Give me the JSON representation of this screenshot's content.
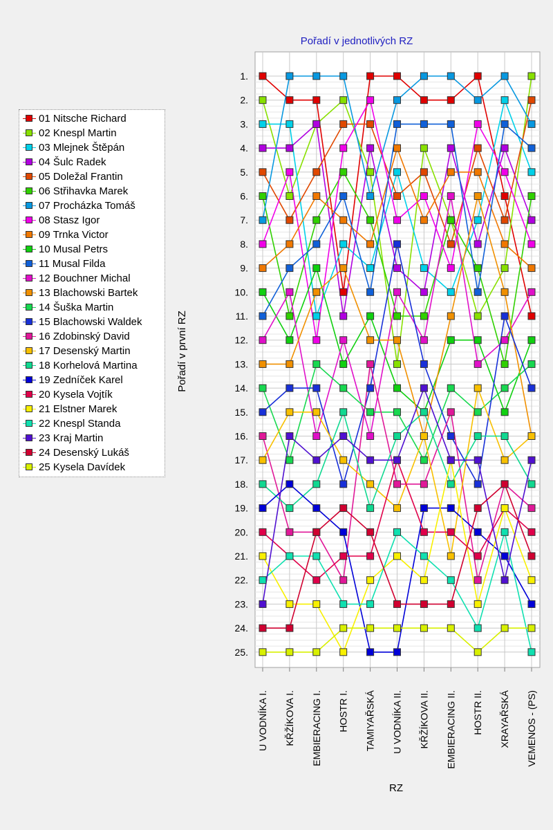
{
  "chart_data": {
    "type": "line",
    "title": "Pořadí v jednotlivých RZ",
    "xlabel": "RZ",
    "ylabel": "Pořadí v první RZ",
    "y_tick_labels": [
      "1.",
      "2.",
      "3.",
      "4.",
      "5.",
      "6.",
      "7.",
      "8.",
      "9.",
      "10.",
      "11.",
      "12.",
      "13.",
      "14.",
      "15.",
      "16.",
      "17.",
      "18.",
      "19.",
      "20.",
      "21.",
      "22.",
      "23.",
      "24.",
      "25."
    ],
    "ylim": [
      1,
      25
    ],
    "y_inverted": true,
    "grid": true,
    "legend_position": "left",
    "categories": [
      "U VODNÍKA I.",
      "KŘŽÍKOVA I.",
      "EMBIERACING I.",
      "HOSTR I.",
      "TAMIYAŘSKÁ",
      "U VODNÍKA II.",
      "KŘŽÍKOVA II.",
      "EMBIERACING II.",
      "HOSTR II.",
      "XRAYAŘSKÁ",
      "VEMENOS - (PS)"
    ],
    "series": [
      {
        "name": "01 Nitsche Richard",
        "color": "#e00000",
        "values": [
          1,
          2,
          2,
          10,
          1,
          1,
          2,
          2,
          1,
          6,
          11
        ]
      },
      {
        "name": "02 Knespl Martin",
        "color": "#88e000",
        "values": [
          2,
          6,
          3,
          2,
          5,
          13,
          4,
          7,
          11,
          9,
          1
        ]
      },
      {
        "name": "03 Mlejnek Štěpán",
        "color": "#00d0e8",
        "values": [
          3,
          3,
          11,
          8,
          9,
          5,
          9,
          10,
          7,
          2,
          5
        ]
      },
      {
        "name": "04 Šulc Radek",
        "color": "#b000e0",
        "values": [
          4,
          4,
          3,
          11,
          4,
          9,
          10,
          4,
          8,
          4,
          7
        ]
      },
      {
        "name": "05 Doležal Frantin",
        "color": "#e04800",
        "values": [
          5,
          7,
          5,
          3,
          3,
          6,
          5,
          8,
          4,
          7,
          2
        ]
      },
      {
        "name": "06 Střihavka Marek",
        "color": "#30d000",
        "values": [
          6,
          11,
          7,
          5,
          7,
          11,
          11,
          7,
          9,
          13,
          6
        ]
      },
      {
        "name": "07 Procházka Tomáš",
        "color": "#0898e0",
        "values": [
          7,
          1,
          1,
          1,
          6,
          2,
          1,
          1,
          2,
          1,
          3
        ]
      },
      {
        "name": "08 Stasz Igor",
        "color": "#f000e8",
        "values": [
          8,
          5,
          12,
          4,
          2,
          7,
          6,
          9,
          3,
          5,
          8
        ]
      },
      {
        "name": "09 Trnka Victor",
        "color": "#f07800",
        "values": [
          9,
          8,
          6,
          7,
          8,
          4,
          7,
          5,
          5,
          8,
          9
        ]
      },
      {
        "name": "10 Musal Petrs",
        "color": "#10d010",
        "values": [
          10,
          12,
          9,
          13,
          11,
          14,
          15,
          12,
          12,
          15,
          12
        ]
      },
      {
        "name": "11 Musal Filda",
        "color": "#1060d8",
        "values": [
          11,
          9,
          8,
          6,
          10,
          3,
          3,
          3,
          10,
          3,
          4
        ]
      },
      {
        "name": "12 Bouchner Michal",
        "color": "#e010c8",
        "values": [
          12,
          10,
          16,
          12,
          16,
          10,
          12,
          6,
          13,
          12,
          10
        ]
      },
      {
        "name": "13 Blachowski Bartek",
        "color": "#f09000",
        "values": [
          13,
          13,
          10,
          9,
          12,
          12,
          16,
          11,
          6,
          10,
          16
        ]
      },
      {
        "name": "14 Šuška Martin",
        "color": "#18d850",
        "values": [
          14,
          17,
          13,
          14,
          15,
          15,
          17,
          14,
          15,
          14,
          13
        ]
      },
      {
        "name": "15 Blachowski Waldek",
        "color": "#1830d8",
        "values": [
          15,
          14,
          14,
          18,
          14,
          8,
          13,
          16,
          18,
          11,
          14
        ]
      },
      {
        "name": "16 Zdobinský David",
        "color": "#e01898",
        "values": [
          16,
          20,
          20,
          22,
          13,
          18,
          18,
          15,
          22,
          18,
          19
        ]
      },
      {
        "name": "17 Desenský Martin",
        "color": "#f8c000",
        "values": [
          17,
          15,
          15,
          17,
          18,
          19,
          16,
          21,
          14,
          17,
          16
        ]
      },
      {
        "name": "18 Korhelová Martina",
        "color": "#10d890",
        "values": [
          18,
          19,
          18,
          15,
          19,
          16,
          15,
          18,
          16,
          16,
          18
        ]
      },
      {
        "name": "19 Zedníček Karel",
        "color": "#0000d8",
        "values": [
          19,
          18,
          19,
          20,
          25,
          25,
          19,
          19,
          20,
          21,
          23
        ]
      },
      {
        "name": "20 Kysela Vojtík",
        "color": "#e0004a",
        "values": [
          20,
          21,
          22,
          21,
          21,
          17,
          20,
          20,
          21,
          19,
          20
        ]
      },
      {
        "name": "21 Elstner Marek",
        "color": "#f8f000",
        "values": [
          21,
          23,
          23,
          25,
          22,
          21,
          22,
          17,
          23,
          19,
          22
        ]
      },
      {
        "name": "22 Knespl Standa",
        "color": "#10e0b0",
        "values": [
          22,
          21,
          21,
          23,
          23,
          20,
          21,
          22,
          24,
          20,
          25
        ]
      },
      {
        "name": "23 Kraj Martin",
        "color": "#5010d0",
        "values": [
          23,
          16,
          17,
          16,
          17,
          17,
          14,
          17,
          17,
          22,
          17
        ]
      },
      {
        "name": "24 Desenský Lukáš",
        "color": "#d00030",
        "values": [
          24,
          24,
          20,
          19,
          20,
          23,
          23,
          23,
          19,
          18,
          21
        ]
      },
      {
        "name": "25 Kysela Davídek",
        "color": "#d8f000",
        "values": [
          25,
          25,
          25,
          24,
          24,
          24,
          24,
          24,
          25,
          24,
          24
        ]
      }
    ]
  }
}
